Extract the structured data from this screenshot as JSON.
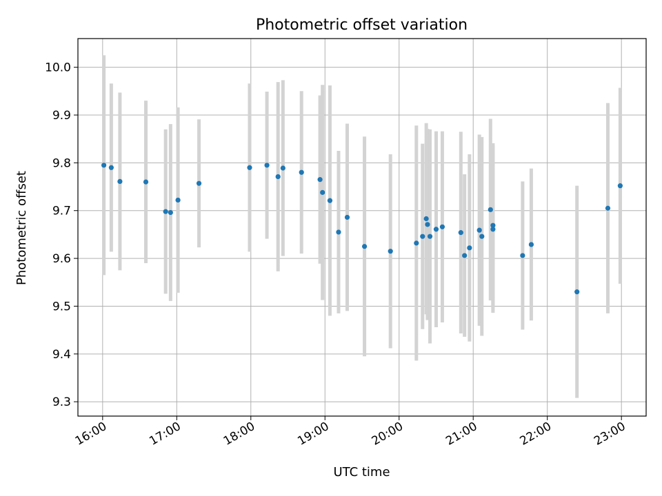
{
  "chart_data": {
    "type": "scatter",
    "title": "Photometric offset variation",
    "xlabel": "UTC time",
    "ylabel": "Photometric offset",
    "x_ticks": [
      "16:00",
      "17:00",
      "18:00",
      "19:00",
      "20:00",
      "21:00",
      "22:00",
      "23:00"
    ],
    "y_ticks": [
      "9.3",
      "9.4",
      "9.5",
      "9.6",
      "9.7",
      "9.8",
      "9.9",
      "10.0"
    ],
    "xlim": [
      "15:40",
      "23:20"
    ],
    "ylim": [
      9.27,
      10.06
    ],
    "grid": true,
    "colors": {
      "point": "#1f77b4",
      "errorbar": "#d3d3d3"
    },
    "series": [
      {
        "x": [
          "16:01",
          "16:07",
          "16:14",
          "16:35",
          "16:51",
          "16:55",
          "17:01",
          "17:18",
          "17:59",
          "18:13",
          "18:22",
          "18:26",
          "18:41",
          "18:56",
          "18:58",
          "19:04",
          "19:11",
          "19:18",
          "19:32",
          "19:53",
          "20:14",
          "20:19",
          "20:22",
          "20:23",
          "20:25",
          "20:30",
          "20:35",
          "20:50",
          "20:53",
          "20:57",
          "21:05",
          "21:07",
          "21:14",
          "21:16",
          "21:16",
          "21:40",
          "21:47",
          "22:24",
          "22:49",
          "22:59"
        ],
        "y": [
          9.795,
          9.79,
          9.761,
          9.76,
          9.698,
          9.696,
          9.722,
          9.757,
          9.79,
          9.795,
          9.771,
          9.789,
          9.78,
          9.765,
          9.738,
          9.721,
          9.655,
          9.686,
          9.625,
          9.615,
          9.632,
          9.646,
          9.683,
          9.671,
          9.646,
          9.661,
          9.666,
          9.654,
          9.606,
          9.622,
          9.659,
          9.646,
          9.702,
          9.669,
          9.661,
          9.606,
          9.629,
          9.53,
          9.705,
          9.752
        ],
        "err": [
          0.23,
          0.176,
          0.186,
          0.17,
          0.172,
          0.185,
          0.194,
          0.134,
          0.176,
          0.154,
          0.198,
          0.184,
          0.17,
          0.176,
          0.225,
          0.241,
          0.17,
          0.196,
          0.23,
          0.203,
          0.246,
          0.194,
          0.2,
          0.2,
          0.224,
          0.205,
          0.2,
          0.211,
          0.17,
          0.196,
          0.2,
          0.208,
          0.19,
          0.172,
          0.175,
          0.155,
          0.159,
          0.222,
          0.22,
          0.205
        ]
      }
    ]
  }
}
